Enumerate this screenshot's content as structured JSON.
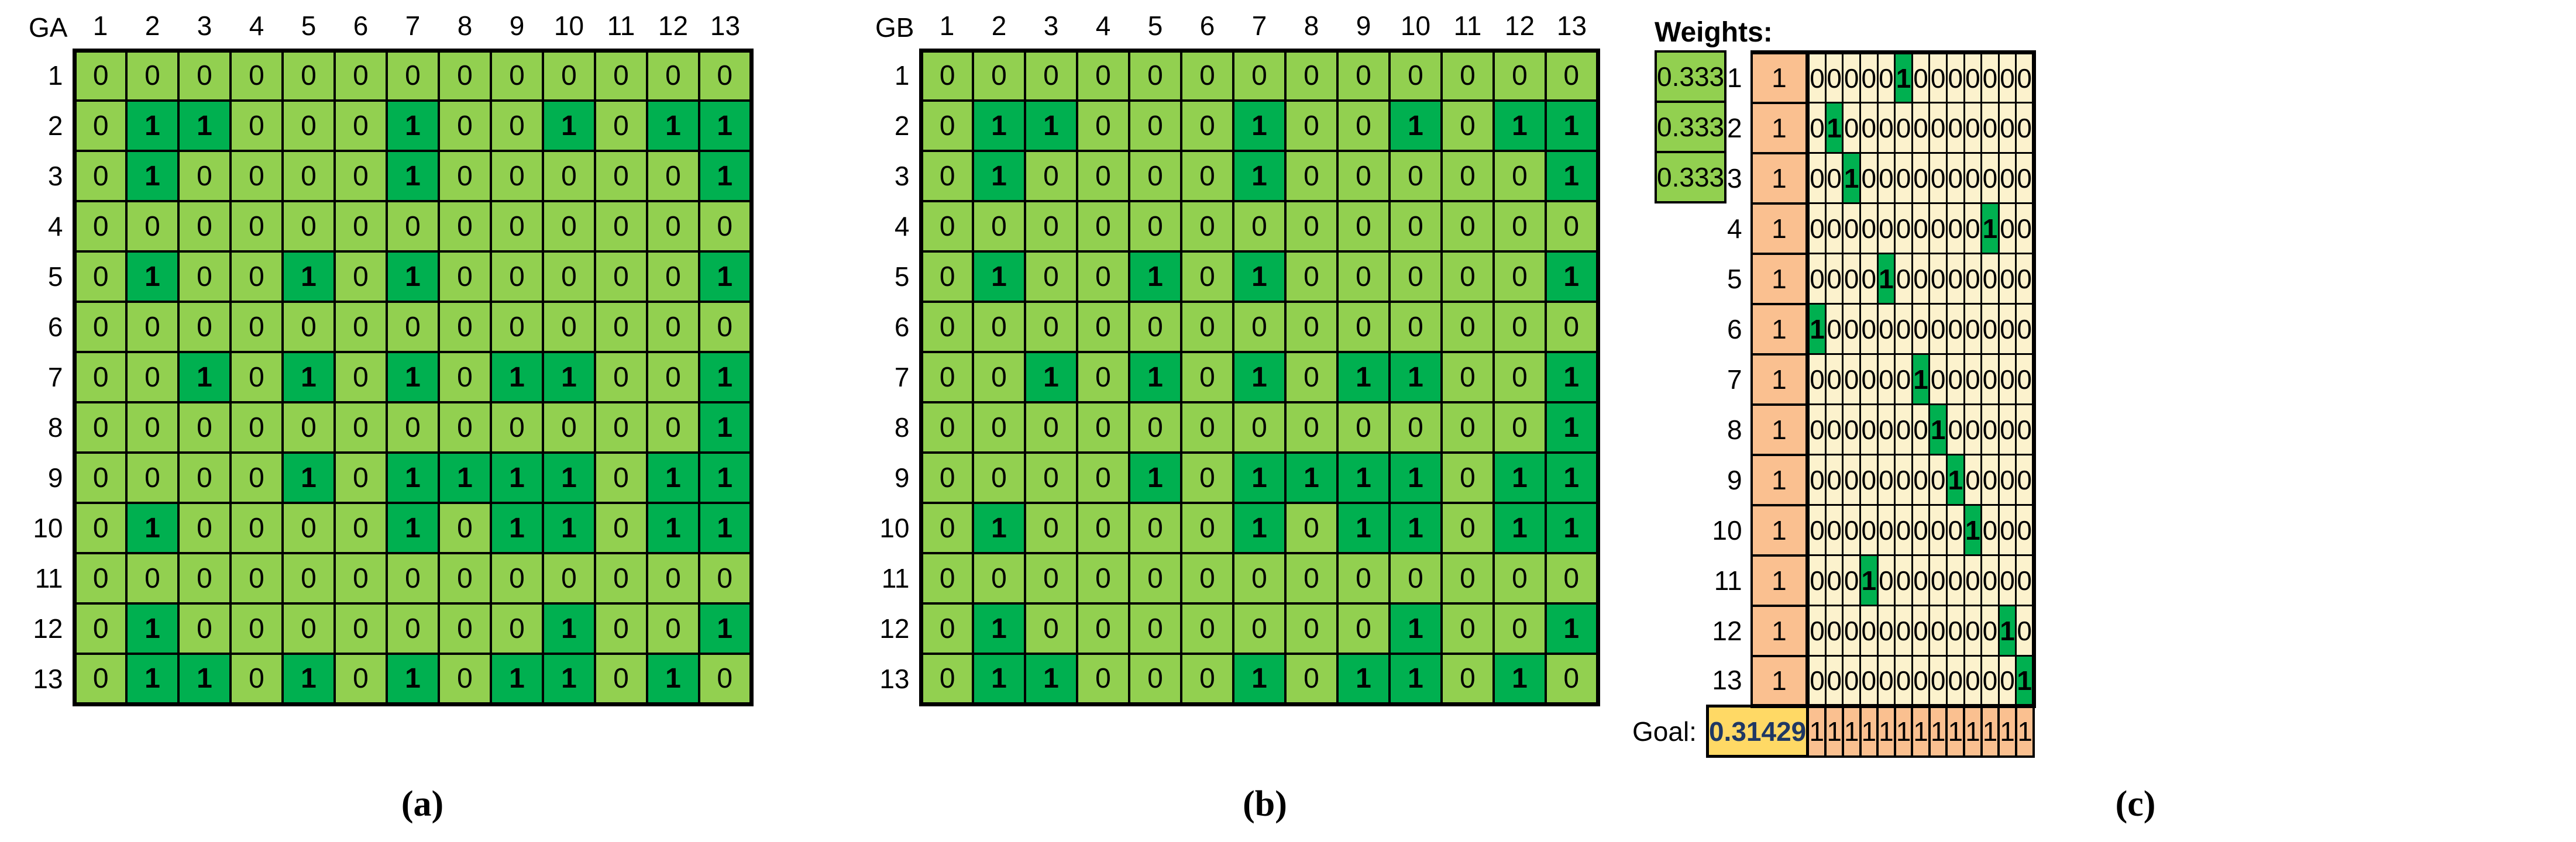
{
  "captions": [
    "(a)",
    "(b)",
    "(c)"
  ],
  "colors": {
    "cell_zero_green": "#92D050",
    "cell_one_green": "#00B050",
    "cell_zero_cream": "#FCF2CD",
    "bias_orange": "#FAC090",
    "goal_yellow": "#FFD965",
    "goal_text_navy": "#1F3864",
    "grid_black": "#000000"
  },
  "chart_data": [
    {
      "type": "heatmap",
      "title": "GA",
      "col_labels": [
        "1",
        "2",
        "3",
        "4",
        "5",
        "6",
        "7",
        "8",
        "9",
        "10",
        "11",
        "12",
        "13"
      ],
      "row_labels": [
        "1",
        "2",
        "3",
        "4",
        "5",
        "6",
        "7",
        "8",
        "9",
        "10",
        "11",
        "12",
        "13"
      ],
      "matrix": [
        [
          0,
          0,
          0,
          0,
          0,
          0,
          0,
          0,
          0,
          0,
          0,
          0,
          0
        ],
        [
          0,
          1,
          1,
          0,
          0,
          0,
          1,
          0,
          0,
          1,
          0,
          1,
          1
        ],
        [
          0,
          1,
          0,
          0,
          0,
          0,
          1,
          0,
          0,
          0,
          0,
          0,
          1
        ],
        [
          0,
          0,
          0,
          0,
          0,
          0,
          0,
          0,
          0,
          0,
          0,
          0,
          0
        ],
        [
          0,
          1,
          0,
          0,
          1,
          0,
          1,
          0,
          0,
          0,
          0,
          0,
          1
        ],
        [
          0,
          0,
          0,
          0,
          0,
          0,
          0,
          0,
          0,
          0,
          0,
          0,
          0
        ],
        [
          0,
          0,
          1,
          0,
          1,
          0,
          1,
          0,
          1,
          1,
          0,
          0,
          1
        ],
        [
          0,
          0,
          0,
          0,
          0,
          0,
          0,
          0,
          0,
          0,
          0,
          0,
          1
        ],
        [
          0,
          0,
          0,
          0,
          1,
          0,
          1,
          1,
          1,
          1,
          0,
          1,
          1
        ],
        [
          0,
          1,
          0,
          0,
          0,
          0,
          1,
          0,
          1,
          1,
          0,
          1,
          1
        ],
        [
          0,
          0,
          0,
          0,
          0,
          0,
          0,
          0,
          0,
          0,
          0,
          0,
          0
        ],
        [
          0,
          1,
          0,
          0,
          0,
          0,
          0,
          0,
          0,
          1,
          0,
          0,
          1
        ],
        [
          0,
          1,
          1,
          0,
          1,
          0,
          1,
          0,
          1,
          1,
          0,
          1,
          0
        ]
      ]
    },
    {
      "type": "heatmap",
      "title": "GB",
      "col_labels": [
        "1",
        "2",
        "3",
        "4",
        "5",
        "6",
        "7",
        "8",
        "9",
        "10",
        "11",
        "12",
        "13"
      ],
      "row_labels": [
        "1",
        "2",
        "3",
        "4",
        "5",
        "6",
        "7",
        "8",
        "9",
        "10",
        "11",
        "12",
        "13"
      ],
      "matrix": [
        [
          0,
          0,
          0,
          0,
          0,
          0,
          0,
          0,
          0,
          0,
          0,
          0,
          0
        ],
        [
          0,
          1,
          1,
          0,
          0,
          0,
          1,
          0,
          0,
          1,
          0,
          1,
          1
        ],
        [
          0,
          1,
          0,
          0,
          0,
          0,
          1,
          0,
          0,
          0,
          0,
          0,
          1
        ],
        [
          0,
          0,
          0,
          0,
          0,
          0,
          0,
          0,
          0,
          0,
          0,
          0,
          0
        ],
        [
          0,
          1,
          0,
          0,
          1,
          0,
          1,
          0,
          0,
          0,
          0,
          0,
          1
        ],
        [
          0,
          0,
          0,
          0,
          0,
          0,
          0,
          0,
          0,
          0,
          0,
          0,
          0
        ],
        [
          0,
          0,
          1,
          0,
          1,
          0,
          1,
          0,
          1,
          1,
          0,
          0,
          1
        ],
        [
          0,
          0,
          0,
          0,
          0,
          0,
          0,
          0,
          0,
          0,
          0,
          0,
          1
        ],
        [
          0,
          0,
          0,
          0,
          1,
          0,
          1,
          1,
          1,
          1,
          0,
          1,
          1
        ],
        [
          0,
          1,
          0,
          0,
          0,
          0,
          1,
          0,
          1,
          1,
          0,
          1,
          1
        ],
        [
          0,
          0,
          0,
          0,
          0,
          0,
          0,
          0,
          0,
          0,
          0,
          0,
          0
        ],
        [
          0,
          1,
          0,
          0,
          0,
          0,
          0,
          0,
          0,
          1,
          0,
          0,
          1
        ],
        [
          0,
          1,
          1,
          0,
          0,
          0,
          1,
          0,
          1,
          1,
          0,
          1,
          0
        ]
      ]
    },
    {
      "type": "heatmap",
      "weights_label": "Weights:",
      "weights": [
        "0.333",
        "0.333",
        "0.333"
      ],
      "row_labels": [
        "1",
        "2",
        "3",
        "4",
        "5",
        "6",
        "7",
        "8",
        "9",
        "10",
        "11",
        "12",
        "13"
      ],
      "bias_column": [
        1,
        1,
        1,
        1,
        1,
        1,
        1,
        1,
        1,
        1,
        1,
        1,
        1
      ],
      "matrix": [
        [
          0,
          0,
          0,
          0,
          0,
          1,
          0,
          0,
          0,
          0,
          0,
          0,
          0
        ],
        [
          0,
          1,
          0,
          0,
          0,
          0,
          0,
          0,
          0,
          0,
          0,
          0,
          0
        ],
        [
          0,
          0,
          1,
          0,
          0,
          0,
          0,
          0,
          0,
          0,
          0,
          0,
          0
        ],
        [
          0,
          0,
          0,
          0,
          0,
          0,
          0,
          0,
          0,
          0,
          1,
          0,
          0
        ],
        [
          0,
          0,
          0,
          0,
          1,
          0,
          0,
          0,
          0,
          0,
          0,
          0,
          0
        ],
        [
          1,
          0,
          0,
          0,
          0,
          0,
          0,
          0,
          0,
          0,
          0,
          0,
          0
        ],
        [
          0,
          0,
          0,
          0,
          0,
          0,
          1,
          0,
          0,
          0,
          0,
          0,
          0
        ],
        [
          0,
          0,
          0,
          0,
          0,
          0,
          0,
          1,
          0,
          0,
          0,
          0,
          0
        ],
        [
          0,
          0,
          0,
          0,
          0,
          0,
          0,
          0,
          1,
          0,
          0,
          0,
          0
        ],
        [
          0,
          0,
          0,
          0,
          0,
          0,
          0,
          0,
          0,
          1,
          0,
          0,
          0
        ],
        [
          0,
          0,
          0,
          1,
          0,
          0,
          0,
          0,
          0,
          0,
          0,
          0,
          0
        ],
        [
          0,
          0,
          0,
          0,
          0,
          0,
          0,
          0,
          0,
          0,
          0,
          1,
          0
        ],
        [
          0,
          0,
          0,
          0,
          0,
          0,
          0,
          0,
          0,
          0,
          0,
          0,
          1
        ]
      ],
      "goal_label": "Goal:",
      "goal_value": "0.31429",
      "goal_row": [
        1,
        1,
        1,
        1,
        1,
        1,
        1,
        1,
        1,
        1,
        1,
        1,
        1
      ]
    }
  ]
}
